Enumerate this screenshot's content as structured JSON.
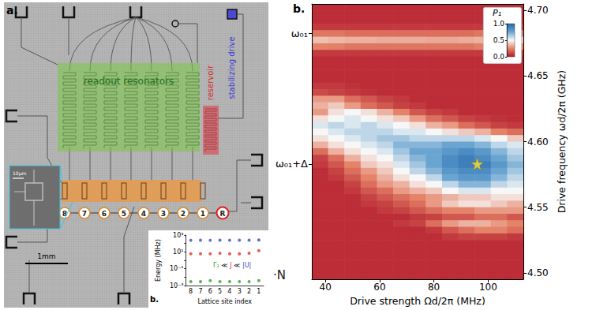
{
  "figure_a": {
    "panel_label": "a.",
    "labels": {
      "resonators": "readout resonators",
      "reservoir": "reservoir",
      "drive": "stabilizing drive"
    },
    "scale_bars": {
      "chip": "1mm",
      "inset": "10μm"
    },
    "sites": [
      "8",
      "7",
      "6",
      "5",
      "4",
      "3",
      "2",
      "1"
    ],
    "reservoir_site": "R"
  },
  "stray_text": "·N",
  "chart_data": [
    {
      "panel_label": "b.",
      "type": "scatter",
      "xlabel": "Lattice site index",
      "ylabel": "Energy (MHz)",
      "categories": [
        "8",
        "7",
        "6",
        "5",
        "4",
        "3",
        "2",
        "1"
      ],
      "series": [
        {
          "name": "|U|",
          "color": "#3b4cc0",
          "values": [
            240,
            250,
            240,
            250,
            240,
            250,
            250,
            260
          ]
        },
        {
          "name": "J",
          "color": "#e8312a",
          "values": [
            6,
            6,
            6,
            7,
            6,
            6,
            7,
            14
          ]
        },
        {
          "name": "Γ₁",
          "color": "#2ca02c",
          "values": [
            0.003,
            0.003,
            0.004,
            0.003,
            0.003,
            0.003,
            0.003,
            0.004
          ]
        }
      ],
      "marker": "circle",
      "log": "y",
      "ylim": [
        0.001,
        1000
      ],
      "yticks": [
        {
          "value": 0.001,
          "label": "10⁻³"
        },
        {
          "value": 0.1,
          "label": "10⁻¹"
        },
        {
          "value": 10,
          "label": "10¹"
        },
        {
          "value": 1000,
          "label": "10³"
        }
      ],
      "annotation": "Γ₁ ≪ J ≪ |U|"
    },
    {
      "panel_label": "b.",
      "type": "heatmap",
      "xlabel": "Drive strength Ωd/2π (MHz)",
      "ylabel": "Drive frequency ωd/2π (GHz)",
      "x": [
        38,
        44,
        50,
        56,
        62,
        68,
        74,
        80,
        86,
        92,
        98,
        104,
        110
      ],
      "y": [
        4.7025,
        4.6975,
        4.6925,
        4.6875,
        4.6825,
        4.6775,
        4.6725,
        4.6675,
        4.6625,
        4.6575,
        4.6525,
        4.6475,
        4.6425,
        4.6375,
        4.6325,
        4.6275,
        4.6225,
        4.6175,
        4.6125,
        4.6075,
        4.6025,
        4.5975,
        4.5925,
        4.5875,
        4.5825,
        4.5775,
        4.5725,
        4.5675,
        4.5625,
        4.5575,
        4.5525,
        4.5475,
        4.5425,
        4.5375,
        4.5325,
        4.5275,
        4.5225,
        4.5175,
        4.5125,
        4.5075,
        4.5025,
        4.4975
      ],
      "cells": [
        [
          0.05,
          0.05,
          0.05,
          0.05,
          0.05,
          0.05,
          0.05,
          0.05,
          0.05,
          0.05,
          0.05,
          0.05,
          0.05
        ],
        [
          0.05,
          0.05,
          0.05,
          0.05,
          0.05,
          0.05,
          0.05,
          0.05,
          0.05,
          0.05,
          0.05,
          0.05,
          0.05
        ],
        [
          0.05,
          0.05,
          0.05,
          0.05,
          0.05,
          0.05,
          0.05,
          0.05,
          0.05,
          0.05,
          0.05,
          0.05,
          0.05
        ],
        [
          0.08,
          0.08,
          0.08,
          0.08,
          0.08,
          0.08,
          0.08,
          0.08,
          0.08,
          0.08,
          0.08,
          0.08,
          0.08
        ],
        [
          0.22,
          0.22,
          0.2,
          0.2,
          0.2,
          0.2,
          0.2,
          0.2,
          0.2,
          0.2,
          0.22,
          0.22,
          0.22
        ],
        [
          0.38,
          0.36,
          0.35,
          0.35,
          0.34,
          0.34,
          0.34,
          0.33,
          0.33,
          0.34,
          0.35,
          0.36,
          0.38
        ],
        [
          0.25,
          0.24,
          0.22,
          0.22,
          0.22,
          0.22,
          0.22,
          0.22,
          0.22,
          0.22,
          0.24,
          0.25,
          0.25
        ],
        [
          0.08,
          0.08,
          0.08,
          0.08,
          0.08,
          0.08,
          0.08,
          0.08,
          0.08,
          0.08,
          0.08,
          0.08,
          0.08
        ],
        [
          0.05,
          0.05,
          0.05,
          0.05,
          0.05,
          0.05,
          0.05,
          0.05,
          0.05,
          0.05,
          0.05,
          0.05,
          0.05
        ],
        [
          0.05,
          0.05,
          0.05,
          0.05,
          0.05,
          0.05,
          0.05,
          0.05,
          0.05,
          0.05,
          0.05,
          0.05,
          0.05
        ],
        [
          0.05,
          0.05,
          0.05,
          0.05,
          0.05,
          0.05,
          0.05,
          0.05,
          0.05,
          0.05,
          0.05,
          0.05,
          0.05
        ],
        [
          0.05,
          0.05,
          0.05,
          0.05,
          0.05,
          0.05,
          0.05,
          0.05,
          0.05,
          0.05,
          0.05,
          0.05,
          0.05
        ],
        [
          0.08,
          0.08,
          0.06,
          0.05,
          0.05,
          0.05,
          0.05,
          0.05,
          0.05,
          0.05,
          0.05,
          0.05,
          0.05
        ],
        [
          0.12,
          0.1,
          0.08,
          0.06,
          0.05,
          0.05,
          0.05,
          0.05,
          0.05,
          0.05,
          0.05,
          0.05,
          0.05
        ],
        [
          0.3,
          0.3,
          0.2,
          0.15,
          0.1,
          0.08,
          0.05,
          0.05,
          0.05,
          0.05,
          0.05,
          0.05,
          0.05
        ],
        [
          0.35,
          0.4,
          0.3,
          0.2,
          0.15,
          0.1,
          0.08,
          0.05,
          0.05,
          0.05,
          0.05,
          0.05,
          0.05
        ],
        [
          0.3,
          0.45,
          0.5,
          0.45,
          0.35,
          0.25,
          0.15,
          0.1,
          0.08,
          0.05,
          0.05,
          0.05,
          0.05
        ],
        [
          0.45,
          0.5,
          0.55,
          0.5,
          0.45,
          0.4,
          0.3,
          0.2,
          0.15,
          0.1,
          0.08,
          0.06,
          0.05
        ],
        [
          0.55,
          0.6,
          0.55,
          0.6,
          0.55,
          0.5,
          0.45,
          0.35,
          0.3,
          0.2,
          0.15,
          0.1,
          0.08
        ],
        [
          0.5,
          0.55,
          0.6,
          0.6,
          0.6,
          0.55,
          0.55,
          0.5,
          0.45,
          0.4,
          0.35,
          0.25,
          0.2
        ],
        [
          0.45,
          0.5,
          0.55,
          0.6,
          0.65,
          0.65,
          0.6,
          0.6,
          0.6,
          0.6,
          0.55,
          0.5,
          0.4
        ],
        [
          0.35,
          0.45,
          0.5,
          0.55,
          0.6,
          0.7,
          0.7,
          0.7,
          0.75,
          0.75,
          0.7,
          0.6,
          0.55
        ],
        [
          0.2,
          0.35,
          0.45,
          0.5,
          0.55,
          0.65,
          0.75,
          0.75,
          0.8,
          0.85,
          0.8,
          0.7,
          0.6
        ],
        [
          0.1,
          0.2,
          0.35,
          0.45,
          0.5,
          0.6,
          0.7,
          0.75,
          0.85,
          0.9,
          0.85,
          0.75,
          0.65
        ],
        [
          0.08,
          0.15,
          0.25,
          0.4,
          0.45,
          0.55,
          0.65,
          0.75,
          0.85,
          0.9,
          0.9,
          0.8,
          0.7
        ],
        [
          0.05,
          0.1,
          0.2,
          0.3,
          0.4,
          0.5,
          0.6,
          0.7,
          0.8,
          0.85,
          0.85,
          0.75,
          0.65
        ],
        [
          0.05,
          0.08,
          0.15,
          0.25,
          0.35,
          0.45,
          0.5,
          0.6,
          0.75,
          0.8,
          0.8,
          0.7,
          0.6
        ],
        [
          0.05,
          0.05,
          0.1,
          0.2,
          0.3,
          0.35,
          0.45,
          0.5,
          0.6,
          0.7,
          0.7,
          0.6,
          0.55
        ],
        [
          0.05,
          0.05,
          0.08,
          0.15,
          0.2,
          0.3,
          0.35,
          0.4,
          0.5,
          0.55,
          0.55,
          0.5,
          0.5
        ],
        [
          0.05,
          0.05,
          0.05,
          0.1,
          0.15,
          0.2,
          0.25,
          0.3,
          0.35,
          0.4,
          0.4,
          0.45,
          0.45
        ],
        [
          0.05,
          0.05,
          0.05,
          0.08,
          0.1,
          0.15,
          0.2,
          0.3,
          0.4,
          0.45,
          0.45,
          0.4,
          0.35
        ],
        [
          0.05,
          0.05,
          0.05,
          0.05,
          0.08,
          0.1,
          0.15,
          0.2,
          0.25,
          0.25,
          0.3,
          0.3,
          0.3
        ],
        [
          0.05,
          0.05,
          0.05,
          0.05,
          0.05,
          0.05,
          0.08,
          0.1,
          0.15,
          0.15,
          0.2,
          0.2,
          0.15
        ],
        [
          0.05,
          0.05,
          0.05,
          0.05,
          0.05,
          0.08,
          0.1,
          0.2,
          0.3,
          0.35,
          0.35,
          0.3,
          0.25
        ],
        [
          0.05,
          0.05,
          0.05,
          0.05,
          0.05,
          0.05,
          0.05,
          0.08,
          0.15,
          0.2,
          0.25,
          0.25,
          0.2
        ],
        [
          0.05,
          0.05,
          0.05,
          0.05,
          0.05,
          0.05,
          0.05,
          0.05,
          0.08,
          0.1,
          0.1,
          0.1,
          0.08
        ],
        [
          0.05,
          0.05,
          0.05,
          0.05,
          0.05,
          0.05,
          0.05,
          0.05,
          0.05,
          0.05,
          0.05,
          0.05,
          0.05
        ],
        [
          0.05,
          0.05,
          0.05,
          0.05,
          0.05,
          0.05,
          0.05,
          0.05,
          0.05,
          0.05,
          0.05,
          0.05,
          0.05
        ],
        [
          0.05,
          0.05,
          0.05,
          0.05,
          0.05,
          0.05,
          0.05,
          0.05,
          0.05,
          0.05,
          0.05,
          0.05,
          0.05
        ],
        [
          0.05,
          0.05,
          0.05,
          0.05,
          0.05,
          0.05,
          0.05,
          0.05,
          0.05,
          0.05,
          0.05,
          0.05,
          0.05
        ],
        [
          0.05,
          0.05,
          0.05,
          0.05,
          0.05,
          0.05,
          0.05,
          0.05,
          0.05,
          0.05,
          0.05,
          0.05,
          0.05
        ],
        [
          0.05,
          0.05,
          0.05,
          0.05,
          0.05,
          0.05,
          0.05,
          0.05,
          0.05,
          0.05,
          0.05,
          0.05,
          0.05
        ]
      ],
      "xlim": [
        35,
        113
      ],
      "xticks": [
        40,
        60,
        80,
        100
      ],
      "ylim": [
        4.495,
        4.705
      ],
      "yticks": [
        {
          "value": 4.5,
          "label": "4.50"
        },
        {
          "value": 4.55,
          "label": "4.55"
        },
        {
          "value": 4.6,
          "label": "4.60"
        },
        {
          "value": 4.65,
          "label": "4.65"
        },
        {
          "value": 4.7,
          "label": "4.70"
        }
      ],
      "y_annotations": [
        {
          "value": 4.6825,
          "label": "ω₀₁"
        },
        {
          "value": 4.583,
          "label": "ω₀₁+Δ"
        }
      ],
      "colorbar": {
        "title": "P₁",
        "range": [
          0,
          1
        ],
        "ticks": [
          {
            "value": 0,
            "label": "0.0"
          },
          {
            "value": 0.5,
            "label": "0.5"
          },
          {
            "value": 1,
            "label": "1.0"
          }
        ]
      },
      "highlight": {
        "x": 96,
        "y": 4.583,
        "color": "#ffe135",
        "marker": "star"
      }
    }
  ]
}
